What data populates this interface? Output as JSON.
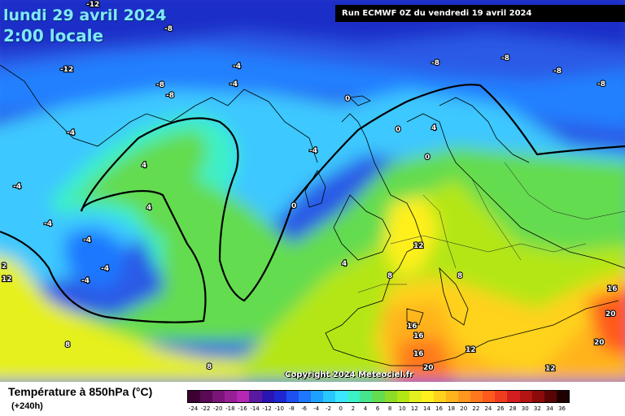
{
  "header": {
    "date": "lundi 29 avril 2024",
    "time": "2:00 locale",
    "run": "Run ECMWF 0Z du vendredi 19 avril 2024"
  },
  "copyright": "Copyright 2024 Meteociel.fr",
  "legend": {
    "title": "Température à 850hPa (°C)",
    "subtitle": "(+240h)",
    "scale_values": [
      "-24",
      "-22",
      "-20",
      "-18",
      "-16",
      "-14",
      "-12",
      "-10",
      "-8",
      "-6",
      "-4",
      "-2",
      "0",
      "2",
      "4",
      "6",
      "8",
      "10",
      "12",
      "14",
      "16",
      "18",
      "20",
      "22",
      "24",
      "26",
      "28",
      "30",
      "32",
      "34",
      "36"
    ],
    "scale_colors": [
      "#3d0033",
      "#5a0a55",
      "#7a1478",
      "#981e96",
      "#b428b4",
      "#5a1aa0",
      "#2a14b4",
      "#1e28d2",
      "#1e50f0",
      "#1e78ff",
      "#1ea0ff",
      "#28c8ff",
      "#3ce6ff",
      "#3cf0c8",
      "#46e68c",
      "#64dc50",
      "#8cdc28",
      "#b4e614",
      "#e6f01e",
      "#fff01e",
      "#ffd21e",
      "#ffb41e",
      "#ff961e",
      "#ff781e",
      "#ff5a1e",
      "#f03c1e",
      "#d21e1e",
      "#b41414",
      "#8c0a0a",
      "#5a0505",
      "#1e0000"
    ]
  },
  "contour_labels": [
    "-12",
    "-12",
    "-8",
    "-8",
    "-8",
    "-8",
    "-8",
    "-8",
    "-8",
    "-4",
    "-4",
    "-4",
    "-4",
    "-4",
    "-4",
    "-4",
    "-4",
    "-4",
    "0",
    "0",
    "0",
    "0",
    "4",
    "4",
    "4",
    "4",
    "8",
    "8",
    "8",
    "8",
    "12",
    "12",
    "12",
    "16",
    "16",
    "16",
    "16",
    "20",
    "20",
    "20",
    "2",
    "12"
  ]
}
